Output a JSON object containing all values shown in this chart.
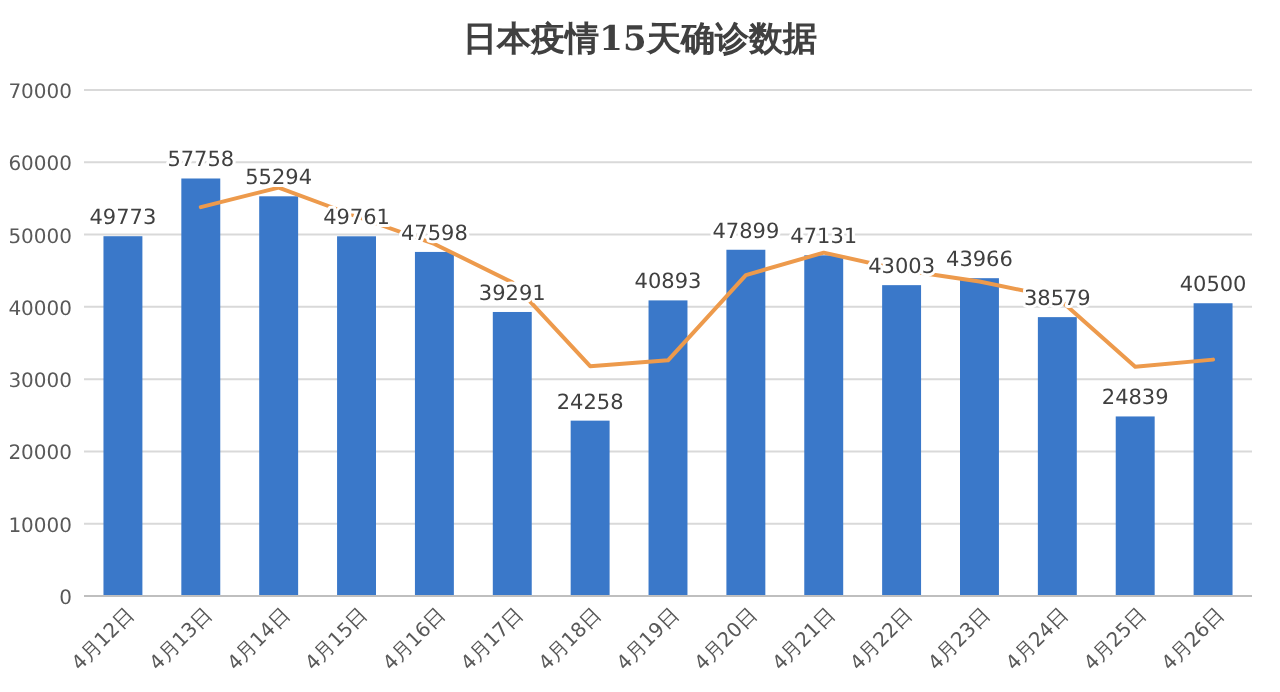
{
  "chart_data": {
    "type": "bar",
    "title": "日本疫情15天确诊数据",
    "categories": [
      "4月12日",
      "4月13日",
      "4月14日",
      "4月15日",
      "4月16日",
      "4月17日",
      "4月18日",
      "4月19日",
      "4月20日",
      "4月21日",
      "4月22日",
      "4月23日",
      "4月24日",
      "4月25日",
      "4月26日"
    ],
    "series": [
      {
        "color": "#3a78c9",
        "values": [
          49773,
          57758,
          55294,
          49761,
          47598,
          39291,
          24258,
          40893,
          47899,
          47131,
          43003,
          43966,
          38579,
          24839,
          40500
        ],
        "data_labels": true
      },
      {
        "type": "line",
        "color": "#ed9a4c",
        "values": [
          null,
          53800,
          56500,
          52500,
          48700,
          43400,
          31800,
          32600,
          44400,
          47500,
          45100,
          43500,
          41300,
          31700,
          32700
        ]
      }
    ],
    "ylim": [
      0,
      70000
    ],
    "yticks": [
      0,
      10000,
      20000,
      30000,
      40000,
      50000,
      60000,
      70000
    ],
    "grid": "y"
  }
}
